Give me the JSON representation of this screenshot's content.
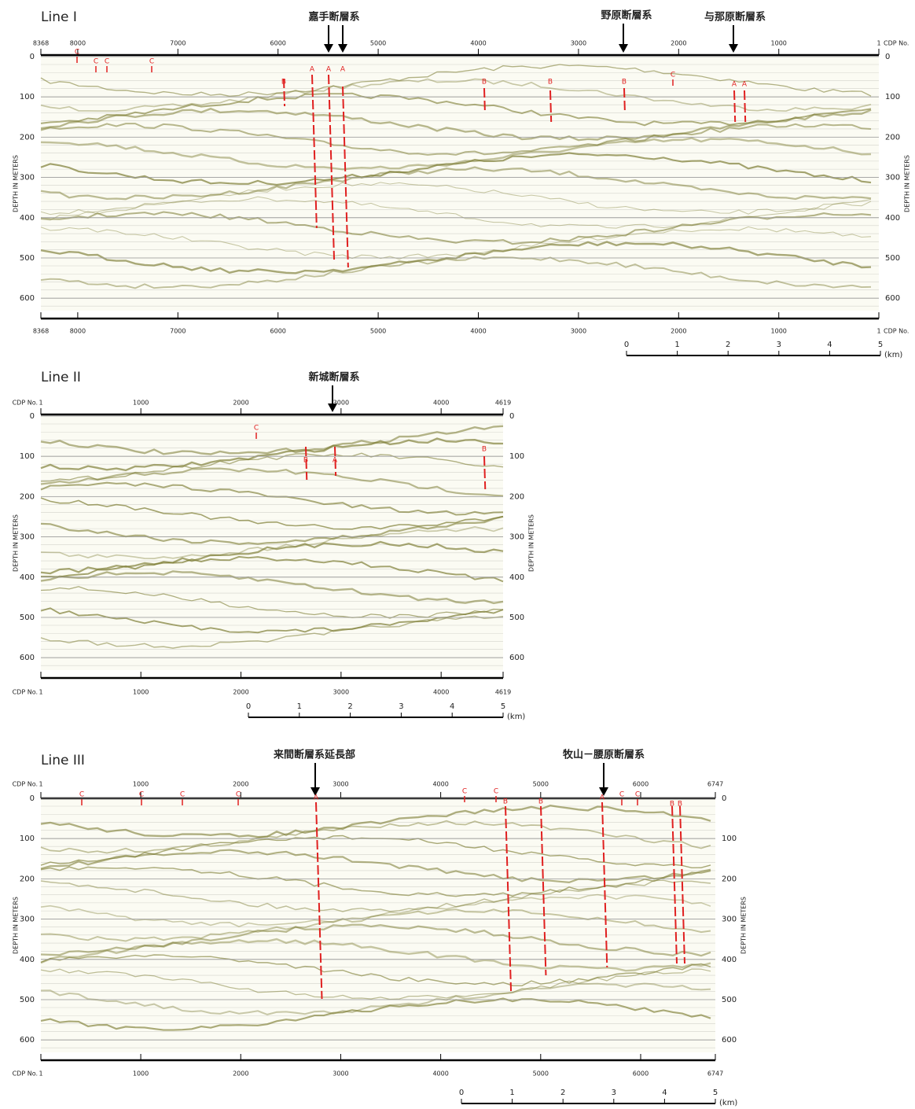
{
  "panels": [
    {
      "title": "Line I",
      "cdp_label": "CDP No.",
      "depth_label": "DEPTH IN METERS",
      "cdp_ticks": [
        8368,
        8000,
        7000,
        6000,
        5000,
        4000,
        3000,
        2000,
        1000,
        1
      ],
      "depth_ticks": [
        0,
        100,
        200,
        300,
        400,
        500,
        600
      ],
      "scale_ticks": [
        0,
        1,
        2,
        3,
        4,
        5
      ],
      "scale_unit": "(km)",
      "fault_systems": [
        "嘉手断層系",
        "野原断層系",
        "与那原断層系"
      ],
      "fault_marks": [
        "C",
        "C",
        "C",
        "C",
        "B",
        "A",
        "A",
        "A",
        "B",
        "B",
        "B",
        "C",
        "A",
        "A"
      ]
    },
    {
      "title": "Line II",
      "cdp_label": "CDP No.",
      "depth_label": "DEPTH IN METERS",
      "cdp_ticks": [
        1,
        1000,
        2000,
        3000,
        4000,
        4619
      ],
      "depth_ticks": [
        0,
        100,
        200,
        300,
        400,
        500,
        600
      ],
      "scale_ticks": [
        0,
        1,
        2,
        3,
        4,
        5
      ],
      "scale_unit": "(km)",
      "fault_systems": [
        "新城断層系"
      ],
      "fault_marks": [
        "C",
        "B",
        "A",
        "B"
      ]
    },
    {
      "title": "Line III",
      "cdp_label": "CDP No.",
      "depth_label": "DEPTH IN METERS",
      "cdp_ticks": [
        1,
        1000,
        2000,
        3000,
        4000,
        5000,
        6000,
        6747
      ],
      "depth_ticks": [
        0,
        100,
        200,
        300,
        400,
        500,
        600
      ],
      "scale_ticks": [
        0,
        1,
        2,
        3,
        4,
        5
      ],
      "scale_unit": "(km)",
      "fault_systems": [
        "来間断層系延長部",
        "牧山－腰原断層系"
      ],
      "fault_marks": [
        "C",
        "C",
        "C",
        "C",
        "A",
        "C",
        "C",
        "B",
        "B",
        "A",
        "C",
        "C",
        "B",
        "B"
      ]
    }
  ]
}
